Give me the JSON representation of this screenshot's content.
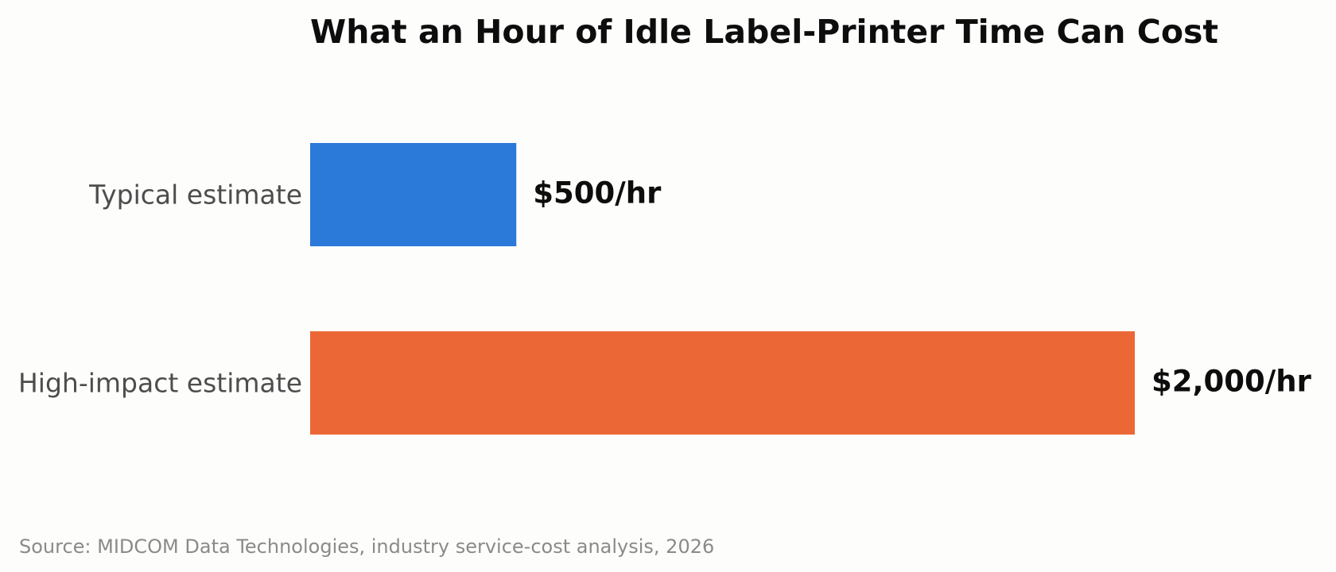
{
  "chart_data": {
    "type": "bar",
    "orientation": "horizontal",
    "title": "What an Hour of Idle Label-Printer Time Can Cost",
    "xlabel": "",
    "ylabel": "",
    "categories": [
      "Typical estimate",
      "High-impact estimate"
    ],
    "values": [
      500,
      2000
    ],
    "value_labels": [
      "$500/hr",
      "$2,000/hr"
    ],
    "colors": [
      "#2b79d8",
      "#eb6836"
    ],
    "xlim": [
      0,
      2000
    ],
    "grid": false,
    "legend": "none",
    "source": "Source: MIDCOM Data Technologies, industry service-cost analysis, 2026"
  }
}
